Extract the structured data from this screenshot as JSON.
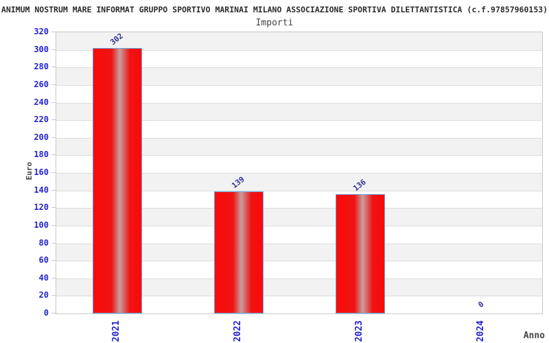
{
  "chart": {
    "title": "ANIMUM NOSTRUM MARE INFORMAT GRUPPO SPORTIVO MARINAI MILANO ASSOCIAZIONE SPORTIVA DILETTANTISTICA (c.f.97857960153)",
    "subtitle": "Importi"
  },
  "chart_data": {
    "type": "bar",
    "title": "ANIMUM NOSTRUM MARE INFORMAT GRUPPO SPORTIVO MARINAI MILANO ASSOCIAZIONE SPORTIVA DILETTANTISTICA (c.f.97857960153)",
    "subtitle": "Importi",
    "categories": [
      "2021",
      "2022",
      "2023",
      "2024"
    ],
    "values": [
      302,
      139,
      136,
      0
    ],
    "xlabel": "Anno",
    "ylabel": "Euro",
    "ylim": [
      0,
      320
    ],
    "ytick_step": 20,
    "grid": "horizontal",
    "legend_position": "none",
    "colors": {
      "bar_fill": "#fb0a0a",
      "bar_highlight": "#c79f9f",
      "bar_border": "#64a8e0",
      "axis_tick_label": "#2323d3",
      "value_label": "#333399",
      "band_gray": "#f2f2f2",
      "band_white": "#ffffff",
      "gridline": "#dcdcdc",
      "plot_border": "#c8c8c8",
      "text_dark": "#444444"
    }
  }
}
